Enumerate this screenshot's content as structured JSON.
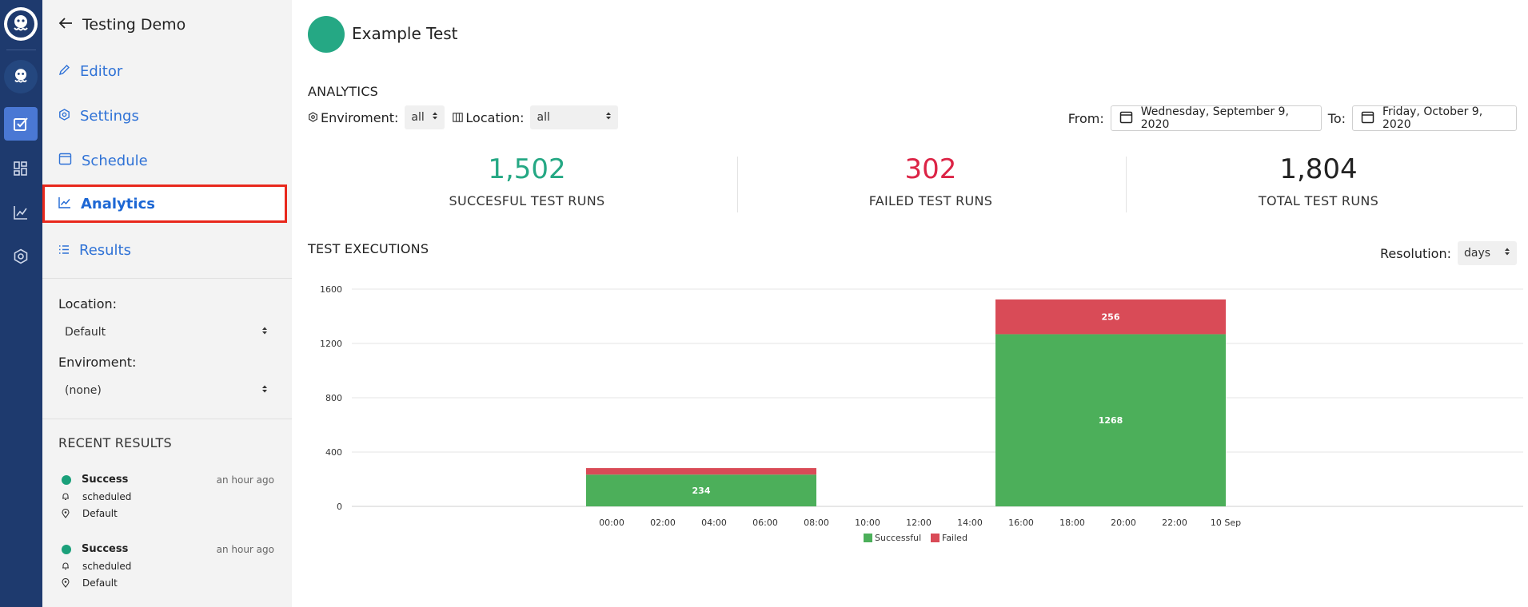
{
  "sidebar": {
    "title": "Testing Demo",
    "nav": [
      {
        "label": "Editor"
      },
      {
        "label": "Settings"
      },
      {
        "label": "Schedule"
      },
      {
        "label": "Analytics"
      },
      {
        "label": "Results"
      }
    ],
    "location_label": "Location:",
    "location_value": "Default",
    "environment_label": "Enviroment:",
    "environment_value": "(none)",
    "recent_title": "RECENT RESULTS",
    "recent": [
      {
        "status": "Success",
        "time": "an hour ago",
        "trigger": "scheduled",
        "location": "Default"
      },
      {
        "status": "Success",
        "time": "an hour ago",
        "trigger": "scheduled",
        "location": "Default"
      }
    ]
  },
  "main": {
    "test_name": "Example Test",
    "analytics_title": "ANALYTICS",
    "environment_filter_label": "Enviroment:",
    "environment_filter_value": "all",
    "location_filter_label": "Location:",
    "location_filter_value": "all",
    "from_label": "From:",
    "from_date": "Wednesday, September 9, 2020",
    "to_label": "To:",
    "to_date": "Friday, October 9, 2020",
    "stats": [
      {
        "value": "1,502",
        "label": "SUCCESFUL TEST RUNS",
        "color": "#25a884"
      },
      {
        "value": "302",
        "label": "FAILED TEST RUNS",
        "color": "#dc2446"
      },
      {
        "value": "1,804",
        "label": "TOTAL TEST RUNS",
        "color": "#222222"
      }
    ],
    "executions_title": "TEST EXECUTIONS",
    "resolution_label": "Resolution:",
    "resolution_value": "days"
  },
  "colors": {
    "success": "#4caf5a",
    "failed": "#d94b57",
    "accent": "#25a884",
    "rail": "#1e3a6e"
  },
  "chart_data": {
    "type": "bar",
    "stacked": true,
    "ylim": [
      0,
      1600
    ],
    "yticks": [
      0,
      400,
      800,
      1200,
      1600
    ],
    "xticks": [
      "00:00",
      "02:00",
      "04:00",
      "06:00",
      "08:00",
      "10:00",
      "12:00",
      "14:00",
      "16:00",
      "18:00",
      "20:00",
      "22:00",
      "10 Sep"
    ],
    "bars": [
      {
        "x_start": "23:00",
        "x_end": "08:00",
        "successful": 234,
        "failed": 48
      },
      {
        "x_start": "15:00",
        "x_end": "00:00",
        "successful": 1268,
        "failed": 256
      }
    ],
    "series": [
      {
        "name": "Successful",
        "color": "#4caf5a"
      },
      {
        "name": "Failed",
        "color": "#d94b57"
      }
    ],
    "legend": "bottom-center",
    "grid": true
  }
}
